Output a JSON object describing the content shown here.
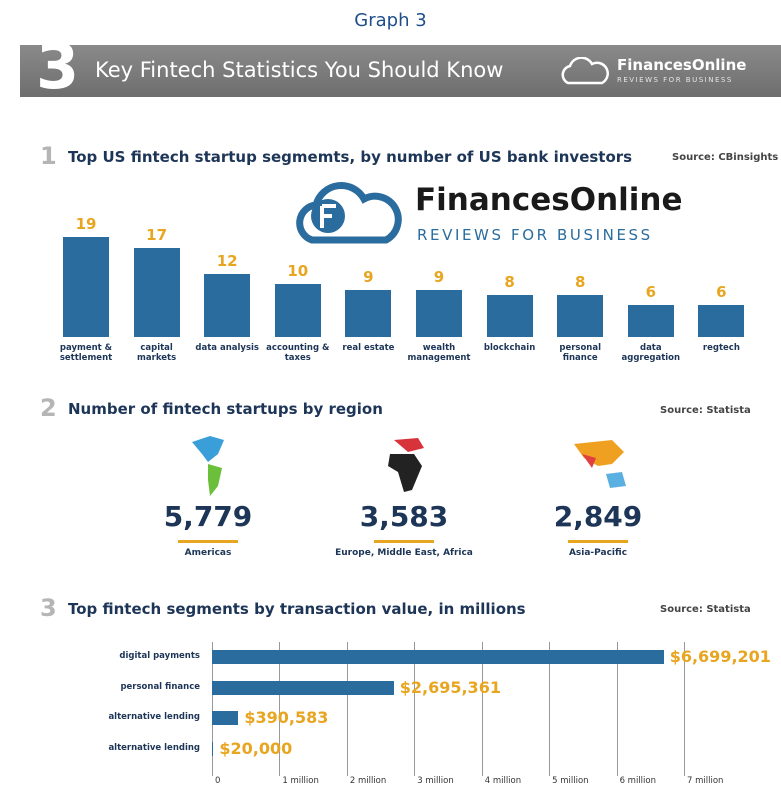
{
  "graph_label": "Graph 3",
  "banner": {
    "number": "3",
    "title": "Key Fintech Statistics You Should Know",
    "brand": "FinancesOnline",
    "brand_sub": "REVIEWS FOR BUSINESS"
  },
  "watermark": {
    "brand": "FinancesOnline",
    "sub": "REVIEWS FOR BUSINESS"
  },
  "regions": {
    "number": "2",
    "title": "Number of fintech startups by region",
    "source": "Source: Statista",
    "items": [
      {
        "value": "5,779",
        "label": "Americas"
      },
      {
        "value": "3,583",
        "label": "Europe, Middle East, Africa"
      },
      {
        "value": "2,849",
        "label": "Asia-Pacific"
      }
    ]
  },
  "chart_data": [
    {
      "type": "bar",
      "number": "1",
      "title": "Top US fintech startup segmemts, by number of US bank investors",
      "source": "Source: CBinsights",
      "categories": [
        "payment & settlement",
        "capital markets",
        "data analysis",
        "accounting & taxes",
        "real estate",
        "wealth management",
        "blockchain",
        "personal finance",
        "data aggregation",
        "regtech"
      ],
      "values": [
        19,
        17,
        12,
        10,
        9,
        9,
        8,
        8,
        6,
        6
      ],
      "color": "#2a6c9e"
    },
    {
      "type": "hbar",
      "number": "3",
      "title": "Top fintech segments by transaction value, in millions",
      "source": "Source: Statista",
      "categories": [
        "digital payments",
        "personal finance",
        "alternative lending",
        "alternative lending"
      ],
      "values": [
        6699201,
        2695361,
        390583,
        20000
      ],
      "value_labels": [
        "$6,699,201",
        "$2,695,361",
        "$390,583",
        "$20,000"
      ],
      "color": "#2a6c9e",
      "xlim": [
        0,
        7000000
      ],
      "xticks": [
        0,
        {
          "value": 1000000,
          "label": "1 million"
        },
        {
          "value": 2000000,
          "label": "2 million"
        },
        {
          "value": 3000000,
          "label": "3 million"
        },
        {
          "value": 4000000,
          "label": "4 million"
        },
        {
          "value": 5000000,
          "label": "5 million"
        },
        {
          "value": 6000000,
          "label": "6 million"
        },
        {
          "value": 7000000,
          "label": "7 million"
        }
      ],
      "grid": true
    }
  ]
}
